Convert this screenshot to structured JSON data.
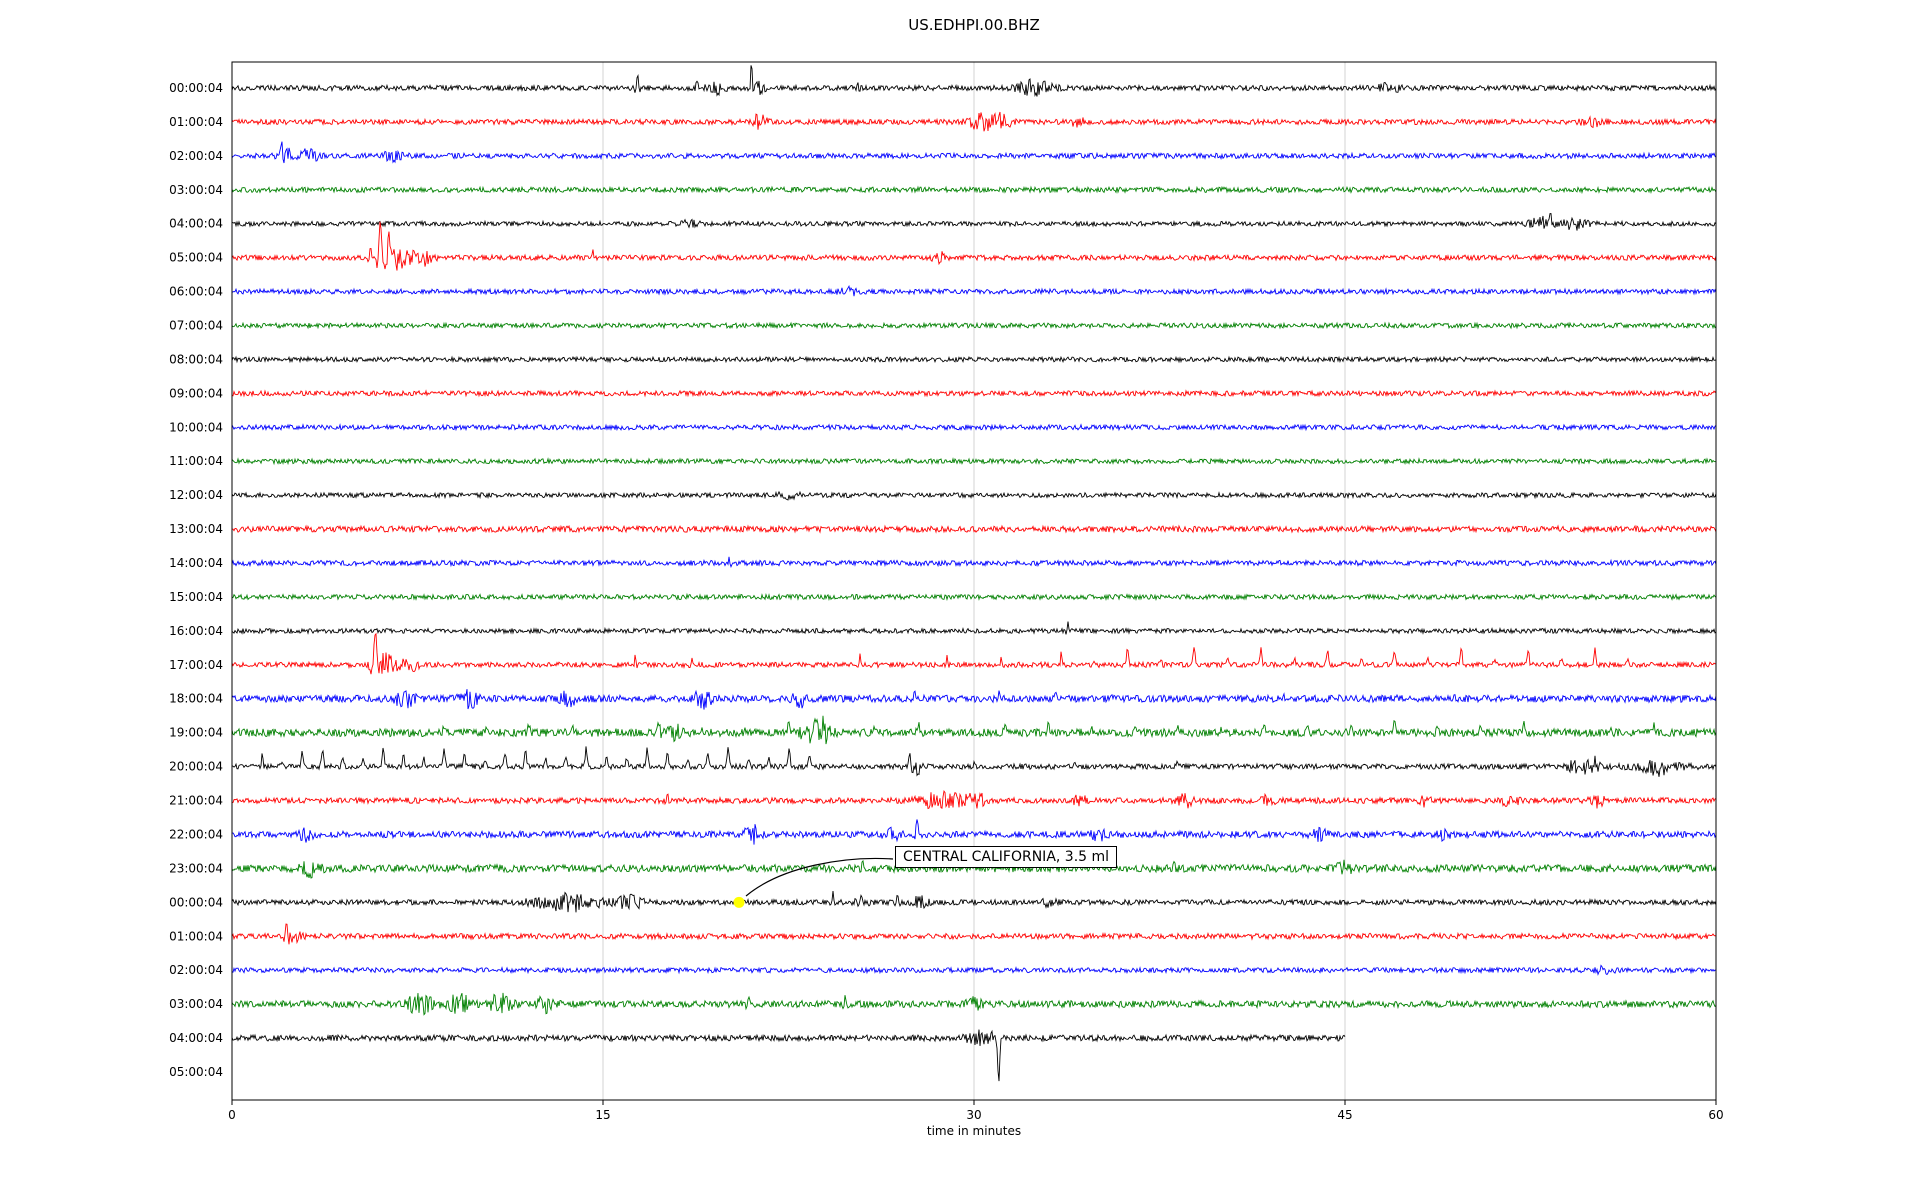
{
  "chart_data": {
    "type": "line",
    "subtype": "seismogram-helicorder",
    "title": "US.EDHPI.00.BHZ",
    "xlabel": "time in minutes",
    "xlim": [
      0,
      60
    ],
    "x_ticks": [
      0,
      15,
      30,
      45,
      60
    ],
    "grid": true,
    "grid_color": "#c8c8c8",
    "frame_color": "#000000",
    "trace_color_cycle": [
      "#000000",
      "#ff0000",
      "#0000ff",
      "#008000"
    ],
    "annotation": {
      "text": "CENTRAL CALIFORNIA, 3.5 ml",
      "row_index": 24,
      "row_label": "00:00:04",
      "t_minutes": 20.5,
      "marker_color": "#ffff00"
    },
    "rows": [
      {
        "label": "00:00:04",
        "color": "#000000",
        "noise": 1.0,
        "end_minute": 60,
        "events": [
          {
            "type": "spike",
            "t": 16.4,
            "a": 5,
            "w": 0.08
          },
          {
            "type": "spike",
            "t": 18.8,
            "a": 3,
            "w": 0.08
          },
          {
            "type": "burst",
            "t": 19.6,
            "a": 1.8,
            "w": 0.4
          },
          {
            "type": "spike",
            "t": 21.0,
            "a": 9,
            "w": 0.07
          },
          {
            "type": "burst",
            "t": 21.3,
            "a": 2.5,
            "w": 0.25
          },
          {
            "type": "spike",
            "t": 25.3,
            "a": 2.5,
            "w": 0.06
          },
          {
            "type": "burst",
            "t": 32.4,
            "a": 2.6,
            "w": 0.7
          },
          {
            "type": "burst",
            "t": 46.8,
            "a": 1.5,
            "w": 0.4
          }
        ]
      },
      {
        "label": "01:00:04",
        "color": "#ff0000",
        "noise": 1.0,
        "end_minute": 60,
        "events": [
          {
            "type": "spike",
            "t": 21.2,
            "a": 3,
            "w": 0.08
          },
          {
            "type": "burst",
            "t": 21.4,
            "a": 2.2,
            "w": 0.25
          },
          {
            "type": "burst",
            "t": 30.3,
            "a": 2.8,
            "w": 0.5
          },
          {
            "type": "burst",
            "t": 31.1,
            "a": 2.6,
            "w": 0.4
          },
          {
            "type": "burst",
            "t": 34.2,
            "a": 1.5,
            "w": 0.3
          },
          {
            "type": "burst",
            "t": 55.0,
            "a": 1.2,
            "w": 0.5
          }
        ]
      },
      {
        "label": "02:00:04",
        "color": "#0000ff",
        "noise": 1.0,
        "end_minute": 60,
        "events": [
          {
            "type": "spike",
            "t": 2.0,
            "a": 4,
            "w": 0.1
          },
          {
            "type": "burst",
            "t": 2.3,
            "a": 3.2,
            "w": 0.35
          },
          {
            "type": "burst",
            "t": 3.1,
            "a": 2.0,
            "w": 0.4
          },
          {
            "type": "burst",
            "t": 6.5,
            "a": 1.5,
            "w": 0.4
          }
        ]
      },
      {
        "label": "03:00:04",
        "color": "#008000",
        "noise": 1.0,
        "end_minute": 60,
        "events": []
      },
      {
        "label": "04:00:04",
        "color": "#000000",
        "noise": 0.9,
        "end_minute": 60,
        "events": [
          {
            "type": "burst",
            "t": 18.5,
            "a": 1.3,
            "w": 0.3
          },
          {
            "type": "burst",
            "t": 52.9,
            "a": 3.0,
            "w": 0.4
          },
          {
            "type": "spike",
            "t": 53.3,
            "a": 4,
            "w": 0.1
          },
          {
            "type": "burst",
            "t": 54.3,
            "a": 2.5,
            "w": 0.5
          }
        ]
      },
      {
        "label": "05:00:04",
        "color": "#ff0000",
        "noise": 1.0,
        "end_minute": 60,
        "events": [
          {
            "type": "spike",
            "t": 5.6,
            "a": 5,
            "w": 0.08
          },
          {
            "type": "spike",
            "t": 6.0,
            "a": 13,
            "w": 0.12
          },
          {
            "type": "spike",
            "t": 6.35,
            "a": 8,
            "w": 0.1
          },
          {
            "type": "burst",
            "t": 6.7,
            "a": 4.0,
            "w": 0.6
          },
          {
            "type": "burst",
            "t": 7.7,
            "a": 2.5,
            "w": 0.4
          },
          {
            "type": "spike",
            "t": 14.6,
            "a": 2.5,
            "w": 0.07
          },
          {
            "type": "burst",
            "t": 28.6,
            "a": 1.8,
            "w": 0.25
          }
        ]
      },
      {
        "label": "06:00:04",
        "color": "#0000ff",
        "noise": 0.95,
        "end_minute": 60,
        "events": [
          {
            "type": "burst",
            "t": 25.0,
            "a": 1.4,
            "w": 0.4
          }
        ]
      },
      {
        "label": "07:00:04",
        "color": "#008000",
        "noise": 0.95,
        "end_minute": 60,
        "events": []
      },
      {
        "label": "08:00:04",
        "color": "#000000",
        "noise": 0.9,
        "end_minute": 60,
        "events": []
      },
      {
        "label": "09:00:04",
        "color": "#ff0000",
        "noise": 0.95,
        "end_minute": 60,
        "events": []
      },
      {
        "label": "10:00:04",
        "color": "#0000ff",
        "noise": 0.95,
        "end_minute": 60,
        "events": []
      },
      {
        "label": "11:00:04",
        "color": "#008000",
        "noise": 0.9,
        "end_minute": 60,
        "events": []
      },
      {
        "label": "12:00:04",
        "color": "#000000",
        "noise": 0.9,
        "end_minute": 60,
        "events": [
          {
            "type": "burst",
            "t": 22.5,
            "a": 1.2,
            "w": 0.4
          }
        ]
      },
      {
        "label": "13:00:04",
        "color": "#ff0000",
        "noise": 1.15,
        "end_minute": 60,
        "events": []
      },
      {
        "label": "14:00:04",
        "color": "#0000ff",
        "noise": 1.0,
        "end_minute": 60,
        "events": [
          {
            "type": "spike",
            "t": 20.1,
            "a": 2.2,
            "w": 0.07
          }
        ]
      },
      {
        "label": "15:00:04",
        "color": "#008000",
        "noise": 0.95,
        "end_minute": 60,
        "events": []
      },
      {
        "label": "16:00:04",
        "color": "#000000",
        "noise": 0.9,
        "end_minute": 60,
        "events": [
          {
            "type": "spike",
            "t": 33.8,
            "a": 3,
            "w": 0.08
          }
        ]
      },
      {
        "label": "17:00:04",
        "color": "#ff0000",
        "noise": 1.0,
        "end_minute": 60,
        "events": [
          {
            "type": "spike",
            "t": 5.8,
            "a": 12,
            "w": 0.15
          },
          {
            "type": "burst",
            "t": 6.2,
            "a": 4,
            "w": 0.45
          },
          {
            "type": "burst",
            "t": 7.2,
            "a": 2,
            "w": 0.4
          },
          {
            "type": "spike",
            "t": 16.3,
            "a": 4,
            "w": 0.07
          },
          {
            "type": "spike",
            "t": 18.6,
            "a": 3,
            "w": 0.07
          },
          {
            "type": "spike",
            "t": 25.4,
            "a": 4,
            "w": 0.07
          },
          {
            "type": "spike",
            "t": 28.9,
            "a": 3,
            "w": 0.07
          },
          {
            "type": "spike",
            "t": 31.1,
            "a": 3,
            "w": 0.07
          },
          {
            "type": "train",
            "t0": 33.5,
            "t1": 57.5,
            "p": 1.35,
            "a": 5.5
          }
        ]
      },
      {
        "label": "18:00:04",
        "color": "#0000ff",
        "noise": 1.35,
        "end_minute": 60,
        "events": [
          {
            "type": "burst",
            "t": 7.0,
            "a": 2.0,
            "w": 0.4
          },
          {
            "type": "burst",
            "t": 9.6,
            "a": 2.4,
            "w": 0.35
          },
          {
            "type": "burst",
            "t": 13.6,
            "a": 2.0,
            "w": 0.3
          },
          {
            "type": "burst",
            "t": 19.0,
            "a": 2.4,
            "w": 0.35
          },
          {
            "type": "burst",
            "t": 23.0,
            "a": 1.8,
            "w": 0.3
          },
          {
            "type": "spike",
            "t": 27.6,
            "a": 3.5,
            "w": 0.08
          },
          {
            "type": "train",
            "t0": 31.0,
            "t1": 56.0,
            "p": 2.3,
            "a": 1.8
          }
        ]
      },
      {
        "label": "19:00:04",
        "color": "#008000",
        "noise": 1.5,
        "end_minute": 60,
        "events": [
          {
            "type": "train",
            "t0": 8.5,
            "t1": 58.0,
            "p": 1.75,
            "a": 3.2
          },
          {
            "type": "burst",
            "t": 17.8,
            "a": 1.8,
            "w": 0.4
          },
          {
            "type": "burst",
            "t": 23.6,
            "a": 2.8,
            "w": 0.5
          },
          {
            "type": "spike",
            "t": 23.9,
            "a": 5,
            "w": 0.1
          }
        ]
      },
      {
        "label": "20:00:04",
        "color": "#000000",
        "noise": 1.0,
        "end_minute": 60,
        "events": [
          {
            "type": "train",
            "t0": 1.2,
            "t1": 24.0,
            "p": 0.82,
            "a": 6.5
          },
          {
            "type": "spike",
            "t": 27.4,
            "a": 4,
            "w": 0.1
          },
          {
            "type": "burst",
            "t": 27.7,
            "a": 2.6,
            "w": 0.3
          },
          {
            "type": "train",
            "t0": 30.0,
            "t1": 50.0,
            "p": 4.1,
            "a": 1.6
          },
          {
            "type": "burst",
            "t": 54.6,
            "a": 2.4,
            "w": 0.7
          },
          {
            "type": "spike",
            "t": 55.1,
            "a": 3,
            "w": 0.1
          },
          {
            "type": "burst",
            "t": 57.7,
            "a": 3.0,
            "w": 0.9
          }
        ]
      },
      {
        "label": "21:00:04",
        "color": "#ff0000",
        "noise": 1.1,
        "end_minute": 60,
        "events": [
          {
            "type": "spike",
            "t": 17.6,
            "a": 3,
            "w": 0.08
          },
          {
            "type": "burst",
            "t": 28.7,
            "a": 3.0,
            "w": 0.8
          },
          {
            "type": "burst",
            "t": 30.1,
            "a": 2.4,
            "w": 0.4
          },
          {
            "type": "burst",
            "t": 34.3,
            "a": 1.8,
            "w": 0.3
          },
          {
            "type": "burst",
            "t": 38.6,
            "a": 2.2,
            "w": 0.3
          },
          {
            "type": "burst",
            "t": 41.9,
            "a": 1.8,
            "w": 0.25
          },
          {
            "type": "burst",
            "t": 48.2,
            "a": 1.8,
            "w": 0.25
          },
          {
            "type": "burst",
            "t": 51.7,
            "a": 2.2,
            "w": 0.3
          },
          {
            "type": "burst",
            "t": 55.2,
            "a": 1.8,
            "w": 0.25
          }
        ]
      },
      {
        "label": "22:00:04",
        "color": "#0000ff",
        "noise": 1.25,
        "end_minute": 60,
        "events": [
          {
            "type": "burst",
            "t": 3.0,
            "a": 1.5,
            "w": 0.3
          },
          {
            "type": "burst",
            "t": 21.1,
            "a": 2.2,
            "w": 0.4
          },
          {
            "type": "burst",
            "t": 26.6,
            "a": 2.2,
            "w": 0.3
          },
          {
            "type": "spike",
            "t": 27.7,
            "a": 5.5,
            "w": 0.1
          },
          {
            "type": "burst",
            "t": 35.0,
            "a": 1.6,
            "w": 0.3
          },
          {
            "type": "burst",
            "t": 44.0,
            "a": 1.6,
            "w": 0.3
          },
          {
            "type": "burst",
            "t": 49.0,
            "a": 1.6,
            "w": 0.25
          }
        ]
      },
      {
        "label": "23:00:04",
        "color": "#008000",
        "noise": 1.45,
        "end_minute": 60,
        "events": [
          {
            "type": "burst",
            "t": 3.2,
            "a": 1.6,
            "w": 0.4
          },
          {
            "type": "spike",
            "t": 25.5,
            "a": 4.5,
            "w": 0.1
          },
          {
            "type": "spike",
            "t": 38.1,
            "a": 3.5,
            "w": 0.09
          },
          {
            "type": "burst",
            "t": 45.0,
            "a": 1.5,
            "w": 0.3
          }
        ]
      },
      {
        "label": "00:00:04",
        "color": "#000000",
        "noise": 1.0,
        "end_minute": 60,
        "events": [
          {
            "type": "burst",
            "t": 13.6,
            "a": 3.0,
            "w": 1.3
          },
          {
            "type": "burst",
            "t": 16.1,
            "a": 2.4,
            "w": 0.5
          },
          {
            "type": "spike",
            "t": 24.3,
            "a": 3.5,
            "w": 0.08
          },
          {
            "type": "burst",
            "t": 25.4,
            "a": 2.0,
            "w": 0.3
          },
          {
            "type": "spike",
            "t": 26.9,
            "a": 3.5,
            "w": 0.09
          },
          {
            "type": "burst",
            "t": 27.8,
            "a": 2.0,
            "w": 0.3
          },
          {
            "type": "burst",
            "t": 33.0,
            "a": 1.3,
            "w": 0.3
          }
        ]
      },
      {
        "label": "01:00:04",
        "color": "#ff0000",
        "noise": 1.05,
        "end_minute": 60,
        "events": [
          {
            "type": "spike",
            "t": 2.2,
            "a": 3.5,
            "w": 0.1
          },
          {
            "type": "burst",
            "t": 2.5,
            "a": 2.0,
            "w": 0.3
          },
          {
            "type": "train",
            "t0": 46.0,
            "t1": 59.0,
            "p": 2.6,
            "a": 1.2
          }
        ]
      },
      {
        "label": "02:00:04",
        "color": "#0000ff",
        "noise": 0.95,
        "end_minute": 60,
        "events": [
          {
            "type": "burst",
            "t": 55.5,
            "a": 1.5,
            "w": 0.3
          }
        ]
      },
      {
        "label": "03:00:04",
        "color": "#008000",
        "noise": 1.3,
        "end_minute": 60,
        "events": [
          {
            "type": "burst",
            "t": 7.6,
            "a": 2.8,
            "w": 0.5
          },
          {
            "type": "burst",
            "t": 9.2,
            "a": 3.0,
            "w": 0.4
          },
          {
            "type": "spike",
            "t": 10.6,
            "a": 4,
            "w": 0.1
          },
          {
            "type": "burst",
            "t": 11.0,
            "a": 2.4,
            "w": 0.4
          },
          {
            "type": "burst",
            "t": 12.6,
            "a": 2.4,
            "w": 0.35
          },
          {
            "type": "spike",
            "t": 20.9,
            "a": 3.5,
            "w": 0.09
          },
          {
            "type": "spike",
            "t": 24.8,
            "a": 2.8,
            "w": 0.09
          },
          {
            "type": "burst",
            "t": 30.0,
            "a": 1.4,
            "w": 0.3
          }
        ]
      },
      {
        "label": "04:00:04",
        "color": "#000000",
        "noise": 1.15,
        "end_minute": 45,
        "events": [
          {
            "type": "burst",
            "t": 30.2,
            "a": 2.0,
            "w": 0.5
          },
          {
            "type": "spike",
            "t": 30.7,
            "a": 3,
            "w": 0.1
          },
          {
            "type": "downspike",
            "t": 31.0,
            "a": 42,
            "w": 0.06
          }
        ]
      },
      {
        "label": "05:00:04",
        "color": "#ff0000",
        "noise": 0,
        "end_minute": 0,
        "events": []
      }
    ]
  }
}
